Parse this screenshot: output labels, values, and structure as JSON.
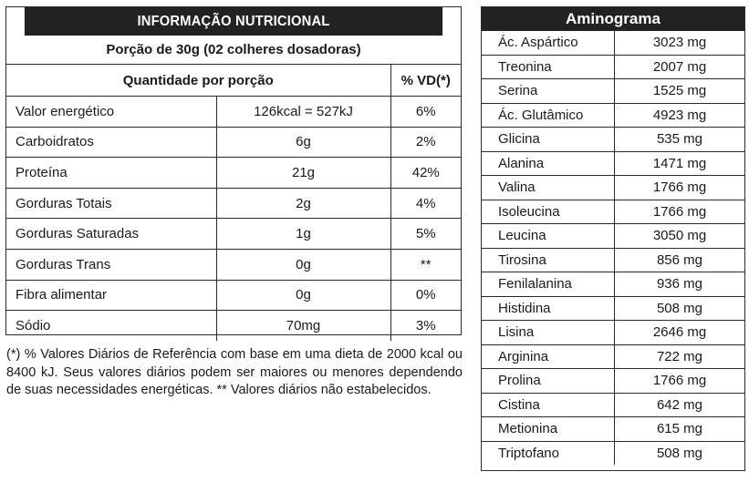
{
  "nutrition": {
    "title": "INFORMAÇÃO NUTRICIONAL",
    "portion": "Porção de 30g (02 colheres dosadoras)",
    "header_quantity": "Quantidade por porção",
    "header_vd": "% VD(*)",
    "rows": [
      {
        "name": "Valor energético",
        "amount": "126kcal = 527kJ",
        "vd": "6%"
      },
      {
        "name": "Carboidratos",
        "amount": "6g",
        "vd": "2%"
      },
      {
        "name": "Proteína",
        "amount": "21g",
        "vd": "42%"
      },
      {
        "name": "Gorduras Totais",
        "amount": "2g",
        "vd": "4%"
      },
      {
        "name": "Gorduras Saturadas",
        "amount": "1g",
        "vd": "5%"
      },
      {
        "name": "Gorduras Trans",
        "amount": "0g",
        "vd": "**"
      },
      {
        "name": "Fibra alimentar",
        "amount": "0g",
        "vd": "0%"
      },
      {
        "name": "Sódio",
        "amount": "70mg",
        "vd": "3%"
      }
    ],
    "footnote": "(*) % Valores Diários de Referência com base em uma dieta de 2000 kcal ou 8400 kJ. Seus valores diários podem ser maiores ou menores dependendo de suas necessidades energéticas. ** Valores diários não estabelecidos."
  },
  "aminogram": {
    "title": "Aminograma",
    "rows": [
      {
        "name": "Ác. Aspártico",
        "value": "3023 mg"
      },
      {
        "name": "Treonina",
        "value": "2007 mg"
      },
      {
        "name": "Serina",
        "value": "1525 mg"
      },
      {
        "name": "Ác. Glutâmico",
        "value": "4923 mg"
      },
      {
        "name": "Glicina",
        "value": "535 mg"
      },
      {
        "name": "Alanina",
        "value": "1471 mg"
      },
      {
        "name": "Valina",
        "value": "1766 mg"
      },
      {
        "name": "Isoleucina",
        "value": "1766 mg"
      },
      {
        "name": "Leucina",
        "value": "3050 mg"
      },
      {
        "name": "Tirosina",
        "value": "856 mg"
      },
      {
        "name": "Fenilalanina",
        "value": "936 mg"
      },
      {
        "name": "Histidina",
        "value": "508 mg"
      },
      {
        "name": "Lisina",
        "value": "2646 mg"
      },
      {
        "name": "Arginina",
        "value": "722 mg"
      },
      {
        "name": "Prolina",
        "value": "1766 mg"
      },
      {
        "name": "Cistina",
        "value": "642 mg"
      },
      {
        "name": "Metionina",
        "value": "615 mg"
      },
      {
        "name": "Triptofano",
        "value": "508 mg"
      }
    ]
  }
}
